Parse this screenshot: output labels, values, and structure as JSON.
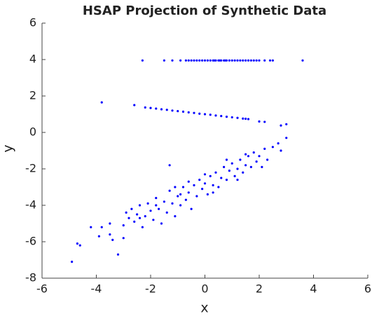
{
  "chart_data": {
    "type": "scatter",
    "title": "HSAP Projection of Synthetic Data",
    "x_label": "x",
    "y_label": "y",
    "xlim": [
      -6,
      6
    ],
    "ylim": [
      -8,
      6
    ],
    "xticks": [
      -6,
      -4,
      -2,
      0,
      2,
      4,
      6
    ],
    "yticks": [
      -8,
      -6,
      -4,
      -2,
      0,
      2,
      4,
      6
    ],
    "series": [
      {
        "color": "#0000ff",
        "x": [
          -2.3,
          -1.5,
          -1.2,
          -0.9,
          -0.7,
          -0.6,
          -0.5,
          -0.4,
          -0.3,
          -0.2,
          -0.1,
          0,
          0.1,
          0.2,
          0.3,
          0.35,
          0.4,
          0.5,
          0.55,
          0.6,
          0.7,
          0.75,
          0.8,
          0.9,
          1.0,
          1.1,
          1.2,
          1.3,
          1.4,
          1.5,
          1.6,
          1.7,
          1.8,
          1.9,
          2.0,
          2.2,
          2.4,
          2.5,
          3.6,
          -3.8,
          -2.6,
          -2.2,
          -2.0,
          -1.8,
          -1.6,
          -1.4,
          -1.2,
          -1.0,
          -0.8,
          -0.6,
          -0.4,
          -0.2,
          0,
          0.2,
          0.4,
          0.6,
          0.8,
          1.0,
          1.2,
          1.4,
          1.5,
          1.6,
          2.0,
          2.2,
          2.8,
          3.0,
          -4.9,
          -4.6,
          -4.7,
          -4.2,
          -3.8,
          -3.9,
          -3.5,
          -3.4,
          -3.2,
          -3.0,
          -3.0,
          -2.8,
          -2.7,
          -2.6,
          -2.5,
          -2.4,
          -2.3,
          -2.2,
          -2.1,
          -2.0,
          -1.9,
          -1.8,
          -1.7,
          -1.6,
          -1.5,
          -1.4,
          -1.3,
          -1.2,
          -1.1,
          -1.0,
          -0.9,
          -0.8,
          -0.7,
          -0.6,
          -0.5,
          -0.4,
          -0.3,
          -0.2,
          -0.1,
          0,
          0.1,
          0.2,
          0.3,
          0.4,
          0.5,
          0.6,
          0.7,
          0.8,
          0.9,
          1.0,
          1.1,
          1.2,
          1.3,
          1.4,
          1.5,
          1.6,
          1.7,
          1.8,
          1.9,
          2.0,
          2.2,
          2.3,
          2.5,
          2.7,
          2.8,
          3.0,
          -1.3,
          -3.5,
          -2.9,
          0.0,
          -0.6,
          0.8,
          1.2,
          -1.8,
          -2.4,
          0.3,
          -0.9,
          1.5,
          2.1,
          -1.1
        ],
        "values": [
          3.95,
          3.95,
          3.95,
          3.95,
          3.95,
          3.95,
          3.95,
          3.95,
          3.95,
          3.95,
          3.95,
          3.95,
          3.95,
          3.95,
          3.95,
          3.95,
          3.95,
          3.95,
          3.95,
          3.95,
          3.95,
          3.95,
          3.95,
          3.95,
          3.95,
          3.95,
          3.95,
          3.95,
          3.95,
          3.95,
          3.95,
          3.95,
          3.95,
          3.95,
          3.95,
          3.95,
          3.95,
          3.95,
          3.95,
          1.65,
          1.5,
          1.37,
          1.34,
          1.31,
          1.27,
          1.24,
          1.2,
          1.17,
          1.14,
          1.1,
          1.07,
          1.03,
          1.0,
          0.97,
          0.93,
          0.9,
          0.86,
          0.83,
          0.8,
          0.76,
          0.75,
          0.73,
          0.6,
          0.58,
          0.38,
          0.45,
          -7.1,
          -6.2,
          -6.1,
          -5.2,
          -5.2,
          -5.7,
          -5.6,
          -5.9,
          -6.7,
          -5.1,
          -5.8,
          -4.7,
          -4.2,
          -4.9,
          -4.5,
          -4.0,
          -5.2,
          -4.6,
          -3.9,
          -4.3,
          -4.8,
          -3.6,
          -4.2,
          -5.0,
          -3.8,
          -4.4,
          -3.2,
          -3.9,
          -4.6,
          -3.5,
          -4.0,
          -3.0,
          -3.7,
          -3.3,
          -4.2,
          -2.9,
          -3.5,
          -2.6,
          -3.1,
          -2.8,
          -3.4,
          -2.4,
          -2.9,
          -2.2,
          -3.0,
          -2.5,
          -1.9,
          -2.6,
          -2.1,
          -1.7,
          -2.4,
          -2.0,
          -1.5,
          -2.2,
          -1.8,
          -1.3,
          -1.9,
          -1.1,
          -1.6,
          -1.3,
          -0.9,
          -1.5,
          -0.8,
          -0.6,
          -1.0,
          -0.3,
          -1.8,
          -5.0,
          -4.4,
          -2.3,
          -2.7,
          -1.5,
          -2.6,
          -4.0,
          -4.7,
          -3.3,
          -3.4,
          -1.2,
          -1.9,
          -3.0
        ]
      }
    ]
  }
}
